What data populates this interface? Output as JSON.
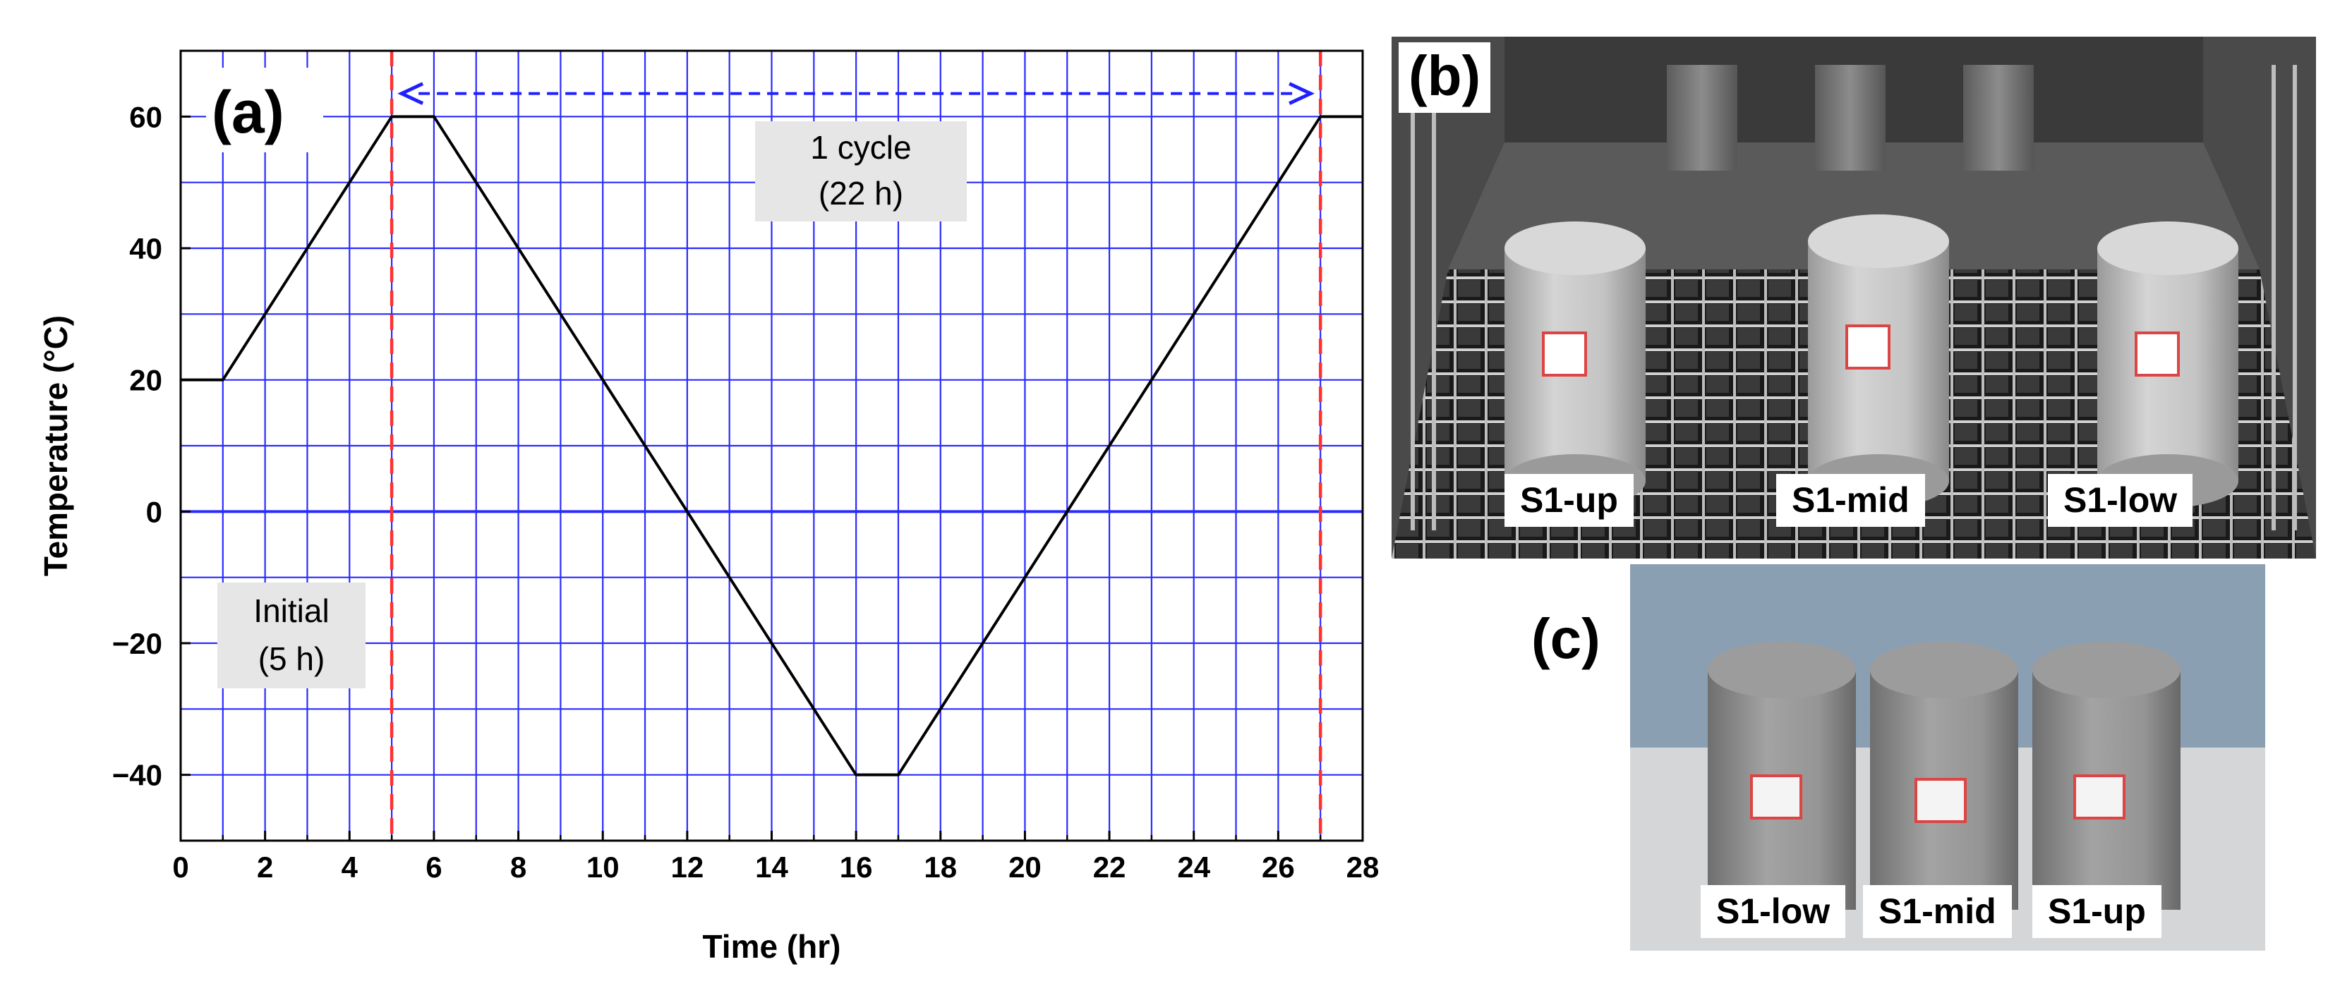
{
  "chart_data": {
    "type": "line",
    "panel_label": "(a)",
    "xlabel": "Time (hr)",
    "ylabel": "Temperature (°C)",
    "xlim": [
      0,
      28
    ],
    "ylim": [
      -50,
      70
    ],
    "x_ticks": [
      0,
      2,
      4,
      6,
      8,
      10,
      12,
      14,
      16,
      18,
      20,
      22,
      24,
      26,
      28
    ],
    "y_ticks": [
      -40,
      -20,
      0,
      20,
      40,
      60
    ],
    "y_tick_labels": [
      "−40",
      "−20",
      "0",
      "20",
      "40",
      "60"
    ],
    "grid": true,
    "grid_color": "#2a2aff",
    "series": [
      {
        "color": "#000000",
        "x": [
          0,
          1,
          5,
          6,
          16,
          17,
          27,
          28
        ],
        "y": [
          20,
          20,
          60,
          60,
          -40,
          -40,
          60,
          60
        ]
      }
    ],
    "vlines": [
      {
        "x": 5,
        "color": "#ff3030",
        "style": "dashed"
      },
      {
        "x": 27,
        "color": "#ff3030",
        "style": "dashed"
      }
    ],
    "cycle_arrow": {
      "from": 5,
      "to": 27,
      "y": 63.5,
      "color": "#2020ff"
    },
    "annotations": {
      "cycle_line1": "1 cycle",
      "cycle_line2": "(22 h)",
      "initial_line1": "Initial",
      "initial_line2": "(5 h)"
    }
  },
  "photos": {
    "b": {
      "panel_label": "(b)",
      "labels": [
        "S1-up",
        "S1-mid",
        "S1-low"
      ]
    },
    "c": {
      "panel_label": "(c)",
      "labels": [
        "S1-low",
        "S1-mid",
        "S1-up"
      ]
    }
  },
  "colors": {
    "grid": "#2a2aff",
    "cycle_line": "#ff3030",
    "arrow": "#2020ff",
    "annotation_box": "#e6e6e6"
  }
}
